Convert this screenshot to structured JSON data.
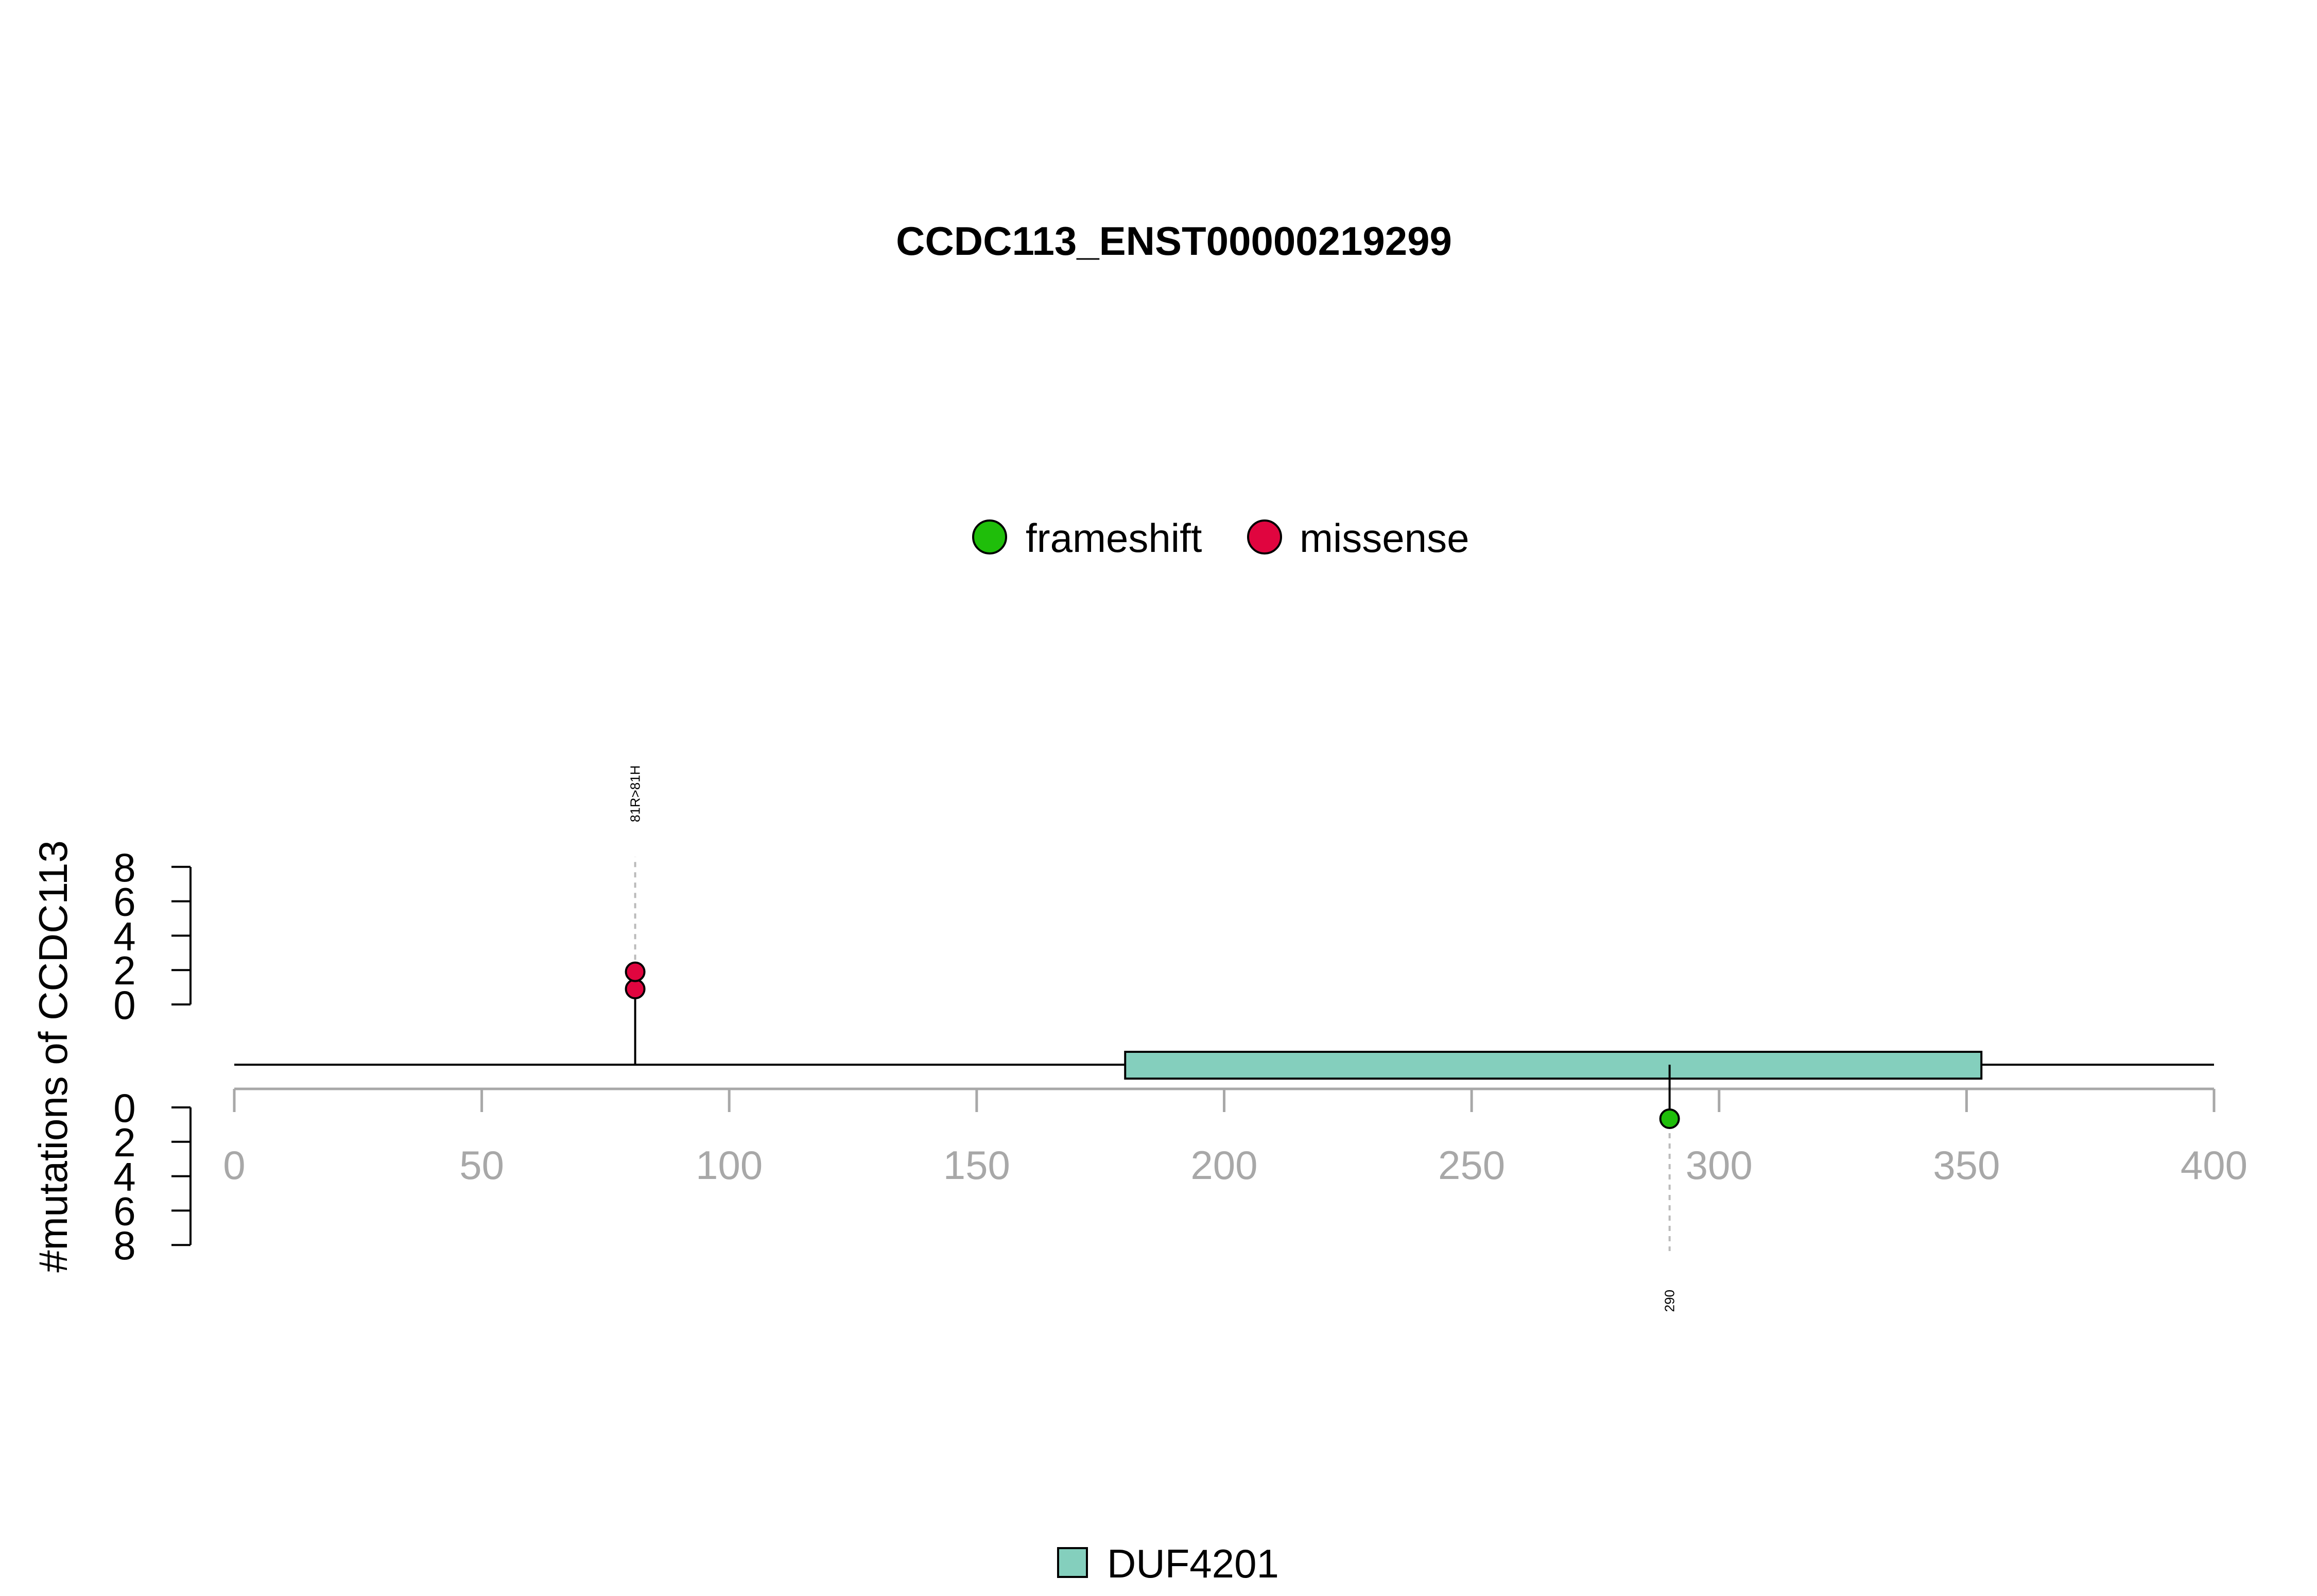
{
  "chart_data": {
    "type": "lollipop",
    "title": "CCDC113_ENST00000219299",
    "ylabel": "#mutations of CCDC113",
    "xlim": [
      0,
      400
    ],
    "x_ticks": [
      0,
      50,
      100,
      150,
      200,
      250,
      300,
      350,
      400
    ],
    "y_ticks_top": [
      0,
      2,
      4,
      6,
      8
    ],
    "y_ticks_bottom": [
      0,
      2,
      4,
      6,
      8
    ],
    "legend": [
      {
        "label": "frameshift",
        "color": "#1fbe0a"
      },
      {
        "label": "missense",
        "color": "#e0053f"
      }
    ],
    "mutations_top": [
      {
        "position": 81,
        "count": 2,
        "type": "missense",
        "label": "81R>81H"
      }
    ],
    "mutations_bottom": [
      {
        "position": 290,
        "count": 1,
        "type": "frameshift",
        "label": "290"
      }
    ],
    "domains": [
      {
        "name": "DUF4201",
        "start": 180,
        "end": 353,
        "color": "#84cfbd"
      }
    ],
    "domain_legend": [
      {
        "label": "DUF4201",
        "color": "#84cfbd"
      }
    ]
  }
}
